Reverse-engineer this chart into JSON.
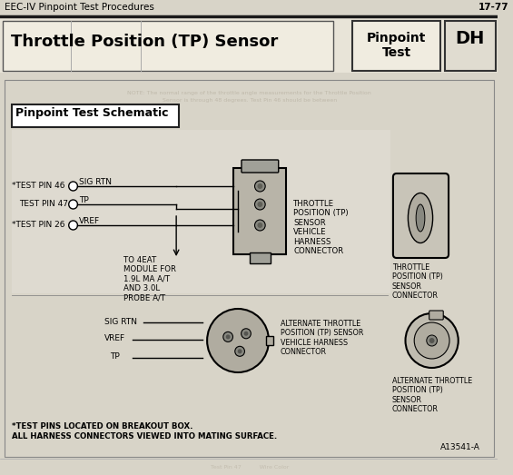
{
  "bg_color": "#d8d4c8",
  "page_bg": "#c8c4b8",
  "header_text_left": "EEC-IV Pinpoint Test Procedures",
  "header_text_right": "17-77",
  "title_main": "Throttle Position (TP) Sensor",
  "title_pinpoint": "Pinpoint\nTest",
  "title_dh": "DH",
  "schematic_title": "Pinpoint Test Schematic",
  "test_pin_46": "*TEST PIN 46",
  "sig_rtn": "SIG RTN",
  "test_pin_47": "TEST PIN 47",
  "tp_label": "TP",
  "test_pin_26": "*TEST PIN 26",
  "vref_label": "VREF",
  "to_4eat": "TO 4EAT\nMODULE FOR\n1.9L MA A/T\nAND 3.0L\nPROBE A/T",
  "throttle_conn_label": "THROTTLE\nPOSITION (TP)\nSENSOR\nVEHICLE\nHARNESS\nCONNECTOR",
  "throttle_sensor_label": "THROTTLE\nPOSITION (TP)\nSENSOR\nCONNECTOR",
  "alt_conn_label": "ALTERNATE THROTTLE\nPOSITION (TP) SENSOR\nVEHICLE HARNESS\nCONNECTOR",
  "alt_sensor_label": "ALTERNATE THROTTLE\nPOSITION (TP)\nSENSOR\nCONNECTOR",
  "footer1": "*TEST PINS LOCATED ON BREAKOUT BOX.",
  "footer2": "ALL HARNESS CONNECTORS VIEWED INTO MATING SURFACE.",
  "part_num": "A13541-A",
  "sig_rtn_alt": "SIG RTN",
  "vref_alt": "VREF",
  "tp_alt": "TP"
}
